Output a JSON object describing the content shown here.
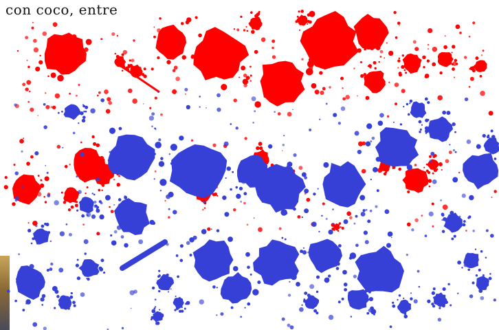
{
  "caption": {
    "text": "con coco, entre"
  },
  "palette": {
    "red": "#ff0000",
    "blue": "#3640d6",
    "background": "#ffffff"
  },
  "image": {
    "subject": "paint-splatter"
  }
}
